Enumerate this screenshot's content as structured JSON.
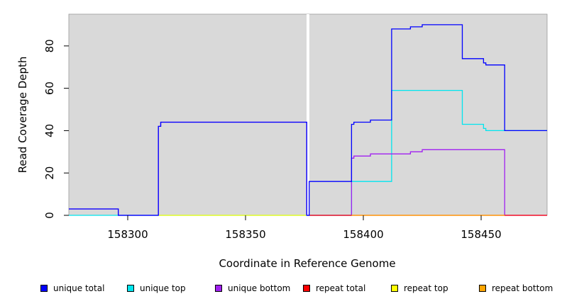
{
  "chart_data": {
    "type": "line",
    "title": "",
    "xlabel": "Coordinate in Reference Genome",
    "ylabel": "Read Coverage Depth",
    "xlim": [
      158275,
      158478
    ],
    "ylim": [
      0,
      95
    ],
    "x_ticks": [
      158300,
      158350,
      158400,
      158450
    ],
    "y_ticks": [
      0,
      20,
      40,
      60,
      80
    ],
    "gap_x": 158376.5,
    "background_color": "#d9d9d9",
    "series": [
      {
        "name": "unique total",
        "color": "#0000ff",
        "points": [
          [
            158275,
            3
          ],
          [
            158296,
            3
          ],
          [
            158296,
            0
          ],
          [
            158313,
            0
          ],
          [
            158313,
            42
          ],
          [
            158314,
            42
          ],
          [
            158314,
            44
          ],
          [
            158376,
            44
          ],
          [
            158376,
            0
          ],
          [
            158377,
            0
          ],
          [
            158377,
            16
          ],
          [
            158395,
            16
          ],
          [
            158395,
            43
          ],
          [
            158396,
            43
          ],
          [
            158396,
            44
          ],
          [
            158403,
            44
          ],
          [
            158403,
            45
          ],
          [
            158412,
            45
          ],
          [
            158412,
            88
          ],
          [
            158420,
            88
          ],
          [
            158420,
            89
          ],
          [
            158425,
            89
          ],
          [
            158425,
            90
          ],
          [
            158442,
            90
          ],
          [
            158442,
            74
          ],
          [
            158451,
            74
          ],
          [
            158451,
            72
          ],
          [
            158452,
            72
          ],
          [
            158452,
            71
          ],
          [
            158460,
            71
          ],
          [
            158460,
            40
          ],
          [
            158478,
            40
          ]
        ]
      },
      {
        "name": "unique top",
        "color": "#00e5ee",
        "points": [
          [
            158275,
            0
          ],
          [
            158376,
            0
          ],
          [
            158377,
            0
          ],
          [
            158395,
            0
          ],
          [
            158395,
            16
          ],
          [
            158412,
            16
          ],
          [
            158412,
            59
          ],
          [
            158442,
            59
          ],
          [
            158442,
            43
          ],
          [
            158451,
            43
          ],
          [
            158451,
            41
          ],
          [
            158452,
            41
          ],
          [
            158452,
            40
          ],
          [
            158478,
            40
          ]
        ]
      },
      {
        "name": "unique bottom",
        "color": "#a020f0",
        "points": [
          [
            158275,
            3
          ],
          [
            158296,
            3
          ],
          [
            158296,
            0
          ],
          [
            158313,
            0
          ],
          [
            158313,
            42
          ],
          [
            158314,
            42
          ],
          [
            158314,
            44
          ],
          [
            158376,
            44
          ],
          [
            158376,
            0
          ],
          [
            158377,
            0
          ],
          [
            158395,
            0
          ],
          [
            158395,
            27
          ],
          [
            158396,
            27
          ],
          [
            158396,
            28
          ],
          [
            158403,
            28
          ],
          [
            158403,
            29
          ],
          [
            158420,
            29
          ],
          [
            158420,
            30
          ],
          [
            158425,
            30
          ],
          [
            158425,
            31
          ],
          [
            158460,
            31
          ],
          [
            158460,
            0
          ],
          [
            158478,
            0
          ]
        ]
      },
      {
        "name": "repeat total",
        "color": "#ff0000",
        "points": [
          [
            158377,
            0
          ],
          [
            158478,
            0
          ]
        ]
      },
      {
        "name": "repeat top",
        "color": "#ffff00",
        "points": [
          [
            158313,
            0
          ],
          [
            158376,
            0
          ]
        ]
      },
      {
        "name": "repeat bottom",
        "color": "#ffa500",
        "points": [
          [
            158395,
            0
          ],
          [
            158460,
            0
          ]
        ]
      }
    ],
    "legend": {
      "placement": "bottom",
      "items": [
        {
          "label": "unique total",
          "color": "#0000ff"
        },
        {
          "label": "unique top",
          "color": "#00e5ee"
        },
        {
          "label": "unique bottom",
          "color": "#a020f0"
        },
        {
          "label": "repeat total",
          "color": "#ff0000"
        },
        {
          "label": "repeat top",
          "color": "#ffff00"
        },
        {
          "label": "repeat bottom",
          "color": "#ffa500"
        }
      ]
    }
  }
}
